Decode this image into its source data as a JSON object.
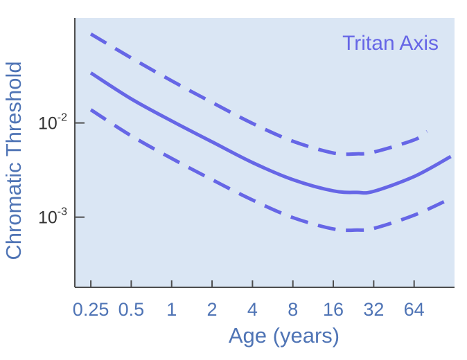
{
  "colors": {
    "plot_bg": "#dae6f4",
    "line": "#6666e6",
    "label": "#4f74b5",
    "axis": "#4d4d4d",
    "tick_text": "#333333"
  },
  "chart_data": {
    "type": "line",
    "title": "",
    "annotation": "Tritan Axis",
    "xlabel": "Age (years)",
    "ylabel": "Chromatic Threshold",
    "x_scale": "log2",
    "y_scale": "log10",
    "xlim": [
      0.19,
      128
    ],
    "ylim": [
      0.00018,
      0.13
    ],
    "x_ticks": [
      0.25,
      0.5,
      1,
      2,
      4,
      8,
      16,
      32,
      64
    ],
    "x_tick_labels": [
      "0.25",
      "0.5",
      "1",
      "2",
      "4",
      "8",
      "16",
      "32",
      "64"
    ],
    "y_ticks": [
      0.01,
      0.001
    ],
    "y_tick_labels": [
      {
        "base": "10",
        "exp": "-2"
      },
      {
        "base": "10",
        "exp": "-3"
      }
    ],
    "grid": false,
    "series": [
      {
        "style": "solid",
        "x": [
          0.25,
          0.5,
          1,
          2,
          4,
          8,
          16,
          24,
          32,
          64,
          120
        ],
        "y": [
          0.034,
          0.018,
          0.0105,
          0.0063,
          0.0038,
          0.0025,
          0.0019,
          0.00183,
          0.00188,
          0.0027,
          0.0044
        ]
      },
      {
        "style": "dashed",
        "x": [
          0.25,
          0.5,
          1,
          2,
          4,
          8,
          16,
          24,
          32,
          64,
          80
        ],
        "y": [
          0.088,
          0.049,
          0.028,
          0.0165,
          0.0099,
          0.0064,
          0.0048,
          0.0047,
          0.0049,
          0.0066,
          0.0081
        ]
      },
      {
        "style": "dashed",
        "x": [
          0.25,
          0.5,
          1,
          2,
          4,
          8,
          16,
          24,
          32,
          64,
          120
        ],
        "y": [
          0.0138,
          0.0073,
          0.0042,
          0.0025,
          0.00152,
          0.00099,
          0.00075,
          0.00073,
          0.00076,
          0.00105,
          0.00158
        ]
      }
    ]
  }
}
